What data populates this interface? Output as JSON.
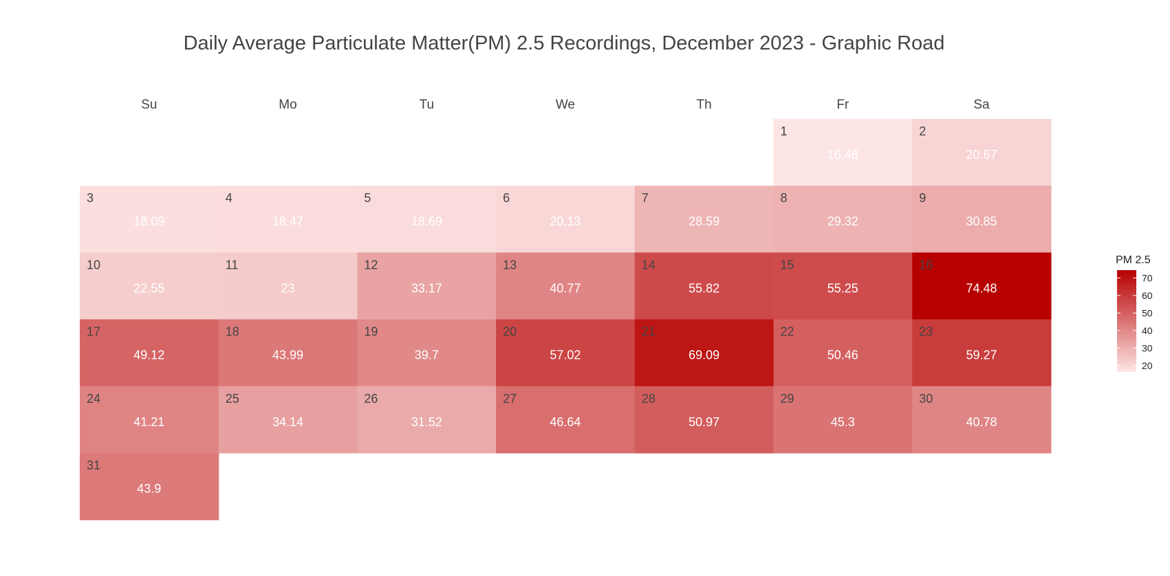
{
  "chart_data": {
    "type": "heatmap",
    "subtype": "calendar",
    "title": "Daily Average Particulate Matter(PM) 2.5 Recordings, December 2023 - Graphic Road",
    "weekdays": [
      "Su",
      "Mo",
      "Tu",
      "We",
      "Th",
      "Fr",
      "Sa"
    ],
    "first_weekday_index": 5,
    "days": [
      1,
      2,
      3,
      4,
      5,
      6,
      7,
      8,
      9,
      10,
      11,
      12,
      13,
      14,
      15,
      16,
      17,
      18,
      19,
      20,
      21,
      22,
      23,
      24,
      25,
      26,
      27,
      28,
      29,
      30,
      31
    ],
    "values": [
      16.48,
      20.67,
      18.09,
      18.47,
      18.69,
      20.13,
      28.59,
      29.32,
      30.85,
      22.55,
      23,
      33.17,
      40.77,
      55.82,
      55.25,
      74.48,
      49.12,
      43.99,
      39.7,
      57.02,
      69.09,
      50.46,
      59.27,
      41.21,
      34.14,
      31.52,
      46.64,
      50.97,
      45.3,
      40.78,
      43.9
    ],
    "value_labels": [
      "16.48",
      "20.67",
      "18.09",
      "18.47",
      "18.69",
      "20.13",
      "28.59",
      "29.32",
      "30.85",
      "22.55",
      "23",
      "33.17",
      "40.77",
      "55.82",
      "55.25",
      "74.48",
      "49.12",
      "43.99",
      "39.7",
      "57.02",
      "69.09",
      "50.46",
      "59.27",
      "41.21",
      "34.14",
      "31.52",
      "46.64",
      "50.97",
      "45.3",
      "40.78",
      "43.9"
    ],
    "legend": {
      "title": "PM 2.5",
      "ticks": [
        "70",
        "60",
        "50",
        "40",
        "30",
        "20"
      ],
      "tick_values": [
        70,
        60,
        50,
        40,
        30,
        20
      ],
      "range": [
        16.48,
        74.48
      ],
      "placement": "right"
    },
    "colors": {
      "low": "#fde5e5",
      "high": "#b70000"
    }
  }
}
